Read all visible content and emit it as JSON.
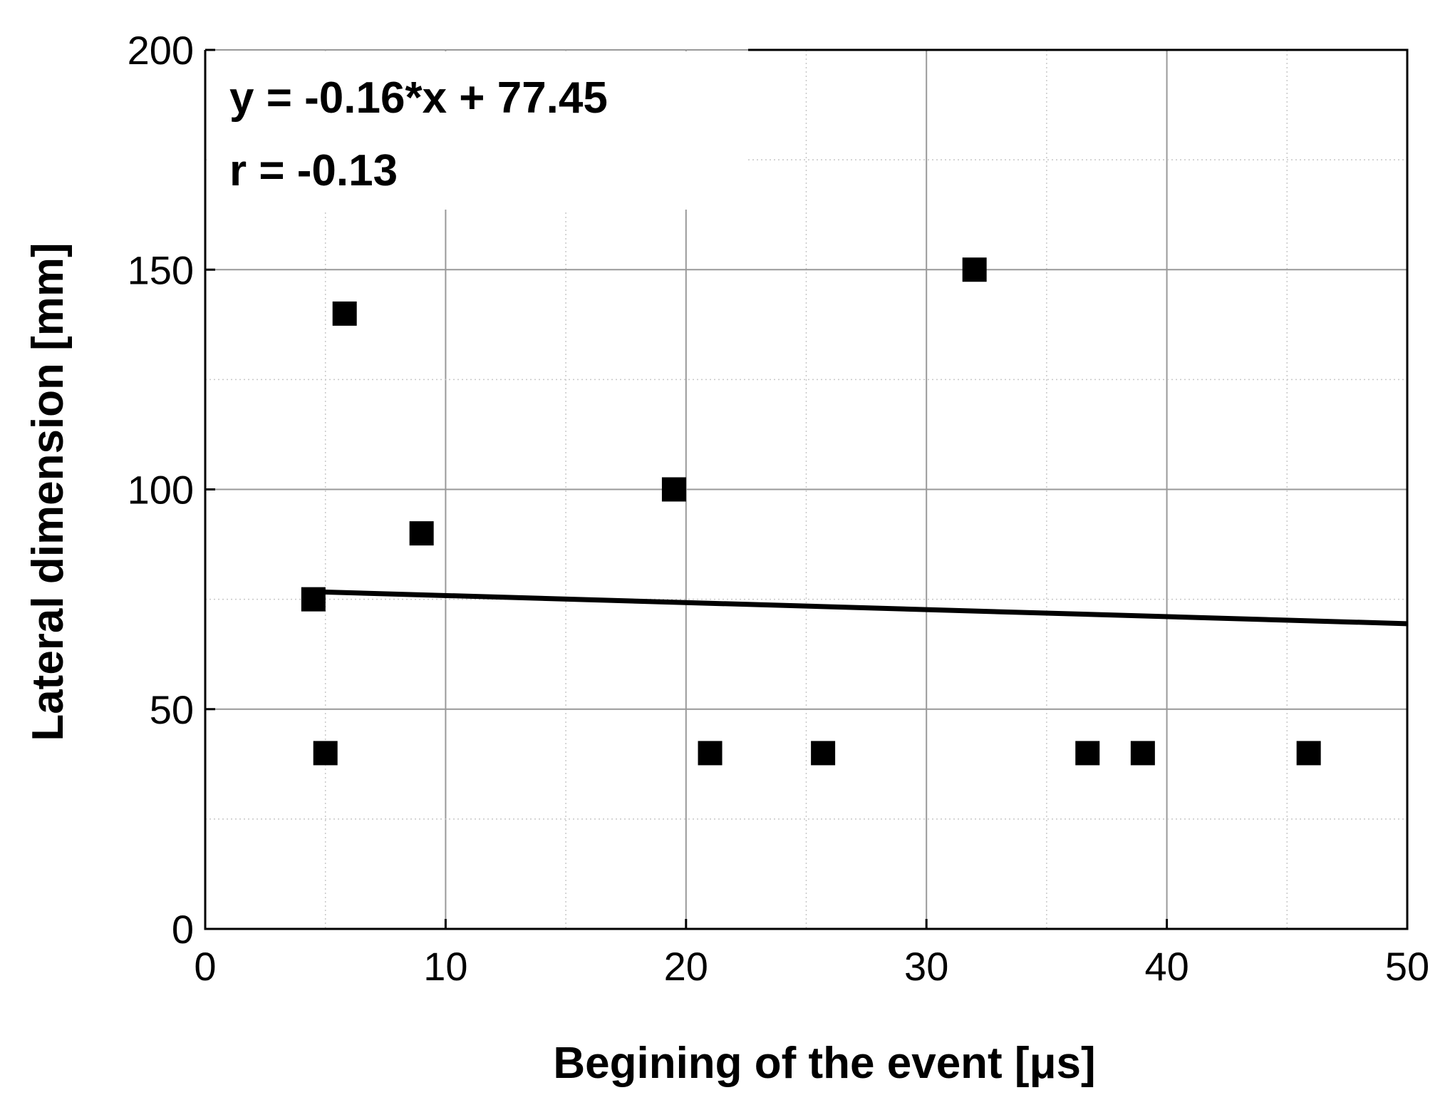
{
  "chart_data": {
    "type": "scatter",
    "xlabel": "Begining of the event [μs]",
    "ylabel": "Lateral dimension [mm]",
    "xlim": [
      0,
      50
    ],
    "ylim": [
      0,
      200
    ],
    "x_ticks": [
      0,
      10,
      20,
      30,
      40,
      50
    ],
    "y_ticks": [
      0,
      50,
      100,
      150,
      200
    ],
    "grid": true,
    "marker": "square",
    "marker_color": "#000000",
    "points": [
      {
        "x": 4.5,
        "y": 75
      },
      {
        "x": 5.0,
        "y": 40
      },
      {
        "x": 5.8,
        "y": 140
      },
      {
        "x": 9.0,
        "y": 90
      },
      {
        "x": 19.5,
        "y": 100
      },
      {
        "x": 21.0,
        "y": 40
      },
      {
        "x": 25.7,
        "y": 40
      },
      {
        "x": 32.0,
        "y": 150
      },
      {
        "x": 36.7,
        "y": 40
      },
      {
        "x": 39.0,
        "y": 40
      },
      {
        "x": 45.9,
        "y": 40
      }
    ],
    "fit_line": {
      "slope": -0.16,
      "intercept": 77.45,
      "x_start": 4.5,
      "x_end": 50
    },
    "annotations": [
      "y = -0.16*x + 77.45",
      "r = -0.13"
    ]
  }
}
